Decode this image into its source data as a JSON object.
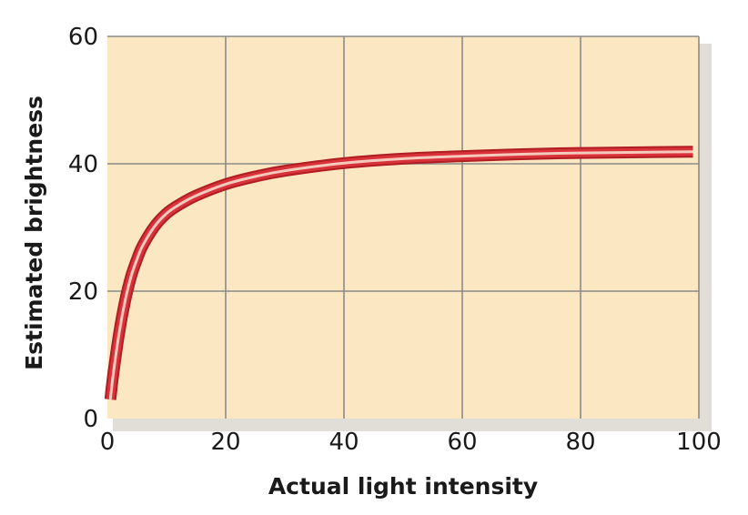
{
  "chart_data": {
    "type": "line",
    "title": "",
    "xlabel": "Actual light intensity",
    "ylabel": "Estimated brightness",
    "xlim": [
      0,
      100
    ],
    "ylim": [
      0,
      60
    ],
    "xticks": [
      "0",
      "20",
      "40",
      "60",
      "80",
      "100"
    ],
    "yticks": [
      "0",
      "20",
      "40",
      "60"
    ],
    "grid": true,
    "legend": "none",
    "colors": {
      "plot_background": "#fbe8c3",
      "shadow": "#c9c2b6",
      "curve_outer": "#b01e23",
      "curve_inner": "#d8323a",
      "curve_highlight": "#f6c9bd",
      "grid": "#8a8a8a"
    },
    "series": [
      {
        "x": [
          0.5,
          1,
          2,
          3,
          4,
          5,
          6,
          8,
          10,
          12,
          15,
          20,
          25,
          30,
          40,
          50,
          60,
          70,
          80,
          90,
          99
        ],
        "values": [
          3,
          7,
          13.5,
          18.5,
          22.3,
          25,
          27.2,
          30.2,
          32.2,
          33.5,
          35,
          36.8,
          38,
          38.9,
          40.1,
          40.8,
          41.2,
          41.5,
          41.7,
          41.8,
          41.9
        ]
      }
    ]
  }
}
